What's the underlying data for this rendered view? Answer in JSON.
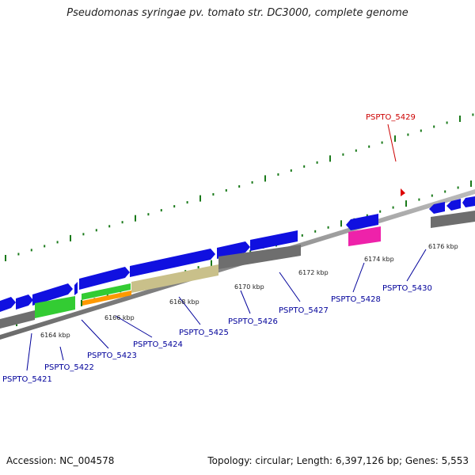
{
  "title": "Pseudomonas syringae pv. tomato str. DC3000, complete genome",
  "footer": {
    "accession": "Accession: NC_004578",
    "summary": "Topology: circular; Length: 6,397,126 bp; Genes: 5,553"
  },
  "colors": {
    "backbone": "#8a8a8a",
    "gene_blue": "#1010e0",
    "gene_gray": "#6e6e6e",
    "gene_green": "#33cc33",
    "gene_orange": "#ff9900",
    "gene_khaki": "#c9c08a",
    "gene_magenta": "#ee22aa",
    "tick_green": "#1a7a1a",
    "label_blue": "#00009a",
    "label_red": "#cc0000"
  },
  "position_labels": [
    "6164 kbp",
    "6166 kbp",
    "6168 kbp",
    "6170 kbp",
    "6172 kbp",
    "6174 kbp",
    "6176 kbp"
  ],
  "gene_labels": [
    {
      "text": "PSPTO_5421",
      "color": "blue"
    },
    {
      "text": "PSPTO_5422",
      "color": "blue"
    },
    {
      "text": "PSPTO_5423",
      "color": "blue"
    },
    {
      "text": "PSPTO_5424",
      "color": "blue"
    },
    {
      "text": "PSPTO_5425",
      "color": "blue"
    },
    {
      "text": "PSPTO_5426",
      "color": "blue"
    },
    {
      "text": "PSPTO_5427",
      "color": "blue"
    },
    {
      "text": "PSPTO_5428",
      "color": "blue"
    },
    {
      "text": "PSPTO_5430",
      "color": "blue"
    },
    {
      "text": "PSPTO_5429",
      "color": "red"
    }
  ]
}
